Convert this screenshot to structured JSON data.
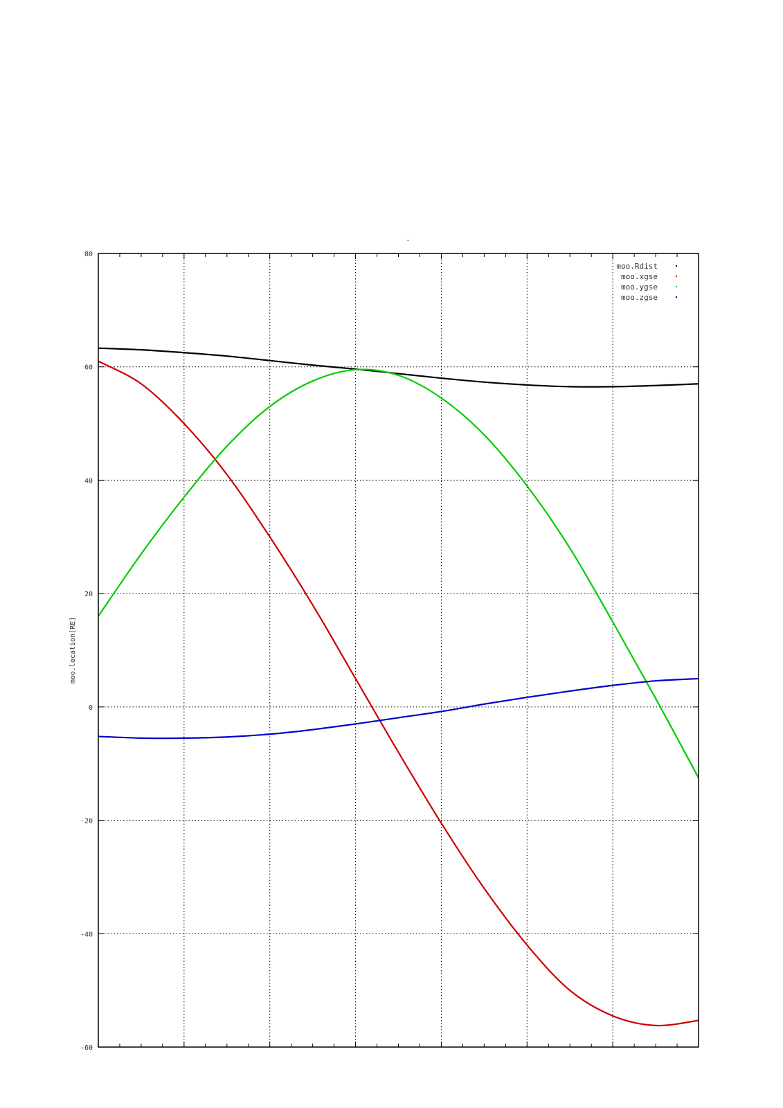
{
  "chart_data": {
    "type": "line",
    "title": "-",
    "xlabel": "",
    "ylabel": "moo.location[RE]",
    "ylim": [
      -60,
      80
    ],
    "yticks": [
      -60,
      -40,
      -20,
      0,
      20,
      40,
      60,
      80
    ],
    "y_tick_labels": [
      "-60",
      "-40",
      "-20",
      "0",
      "20",
      "40",
      "60",
      "80"
    ],
    "xlim": [
      0,
      7
    ],
    "xticks": [
      0,
      1,
      2,
      3,
      4,
      5,
      6,
      7
    ],
    "minor_per_major": 4,
    "x_tick_labels_shown": false,
    "grid": true,
    "legend_position": "top-right",
    "x": [
      0,
      0.5,
      1,
      1.5,
      2,
      2.5,
      3,
      3.5,
      4,
      4.5,
      5,
      5.5,
      6,
      6.5,
      7
    ],
    "series": [
      {
        "name": "moo.Rdist",
        "color": "#000000",
        "values": [
          63.3,
          63.0,
          62.5,
          61.9,
          61.1,
          60.3,
          59.6,
          58.8,
          58.0,
          57.3,
          56.8,
          56.5,
          56.5,
          56.7,
          57.0
        ]
      },
      {
        "name": "moo.xgse",
        "color": "#cc0000",
        "values": [
          61.0,
          57.0,
          50.0,
          41.0,
          30.0,
          18.0,
          5.0,
          -8.0,
          -20.5,
          -32.0,
          -42.0,
          -50.0,
          -54.5,
          -56.2,
          -55.3
        ]
      },
      {
        "name": "moo.ygse",
        "color": "#00cc00",
        "values": [
          16.0,
          27.0,
          37.0,
          46.0,
          53.0,
          57.5,
          59.5,
          58.5,
          54.5,
          48.0,
          39.0,
          28.0,
          15.0,
          1.5,
          -12.5
        ]
      },
      {
        "name": "moo.zgse",
        "color": "#0000cc",
        "values": [
          -5.2,
          -5.5,
          -5.5,
          -5.3,
          -4.8,
          -4.0,
          -3.0,
          -1.9,
          -0.8,
          0.5,
          1.7,
          2.8,
          3.8,
          4.6,
          5.0
        ]
      }
    ]
  }
}
